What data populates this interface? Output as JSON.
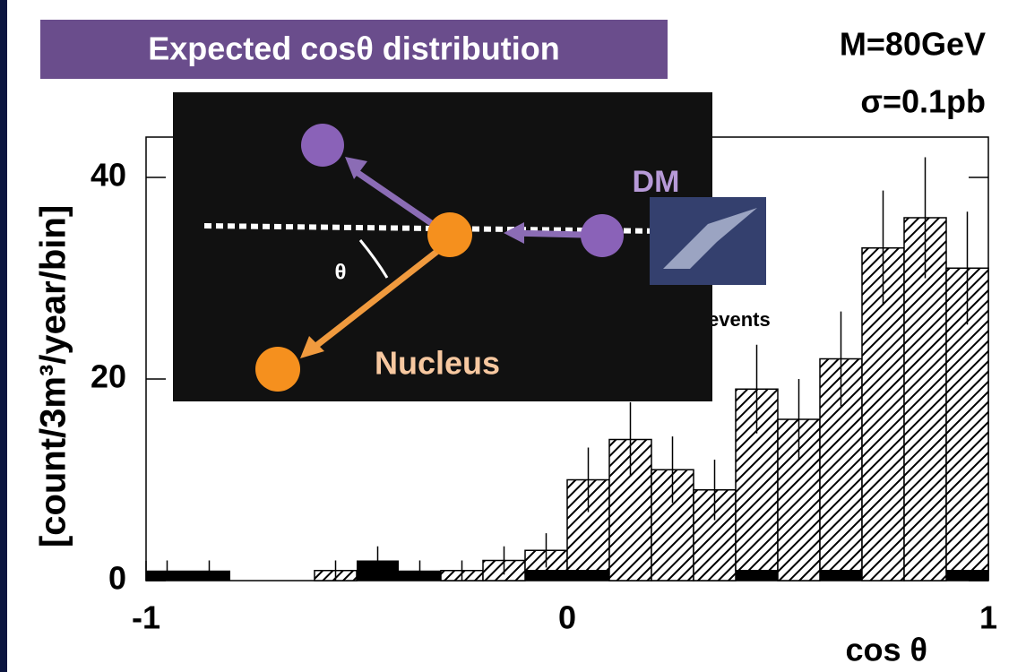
{
  "chart_data": {
    "type": "histogram",
    "title": "Expected cosθ distribution",
    "annotations": [
      "M=80GeV",
      "σ=0.1pb",
      "events"
    ],
    "inset_labels": [
      "DM",
      "θ",
      "Nucleus"
    ],
    "ylabel": "[count/3m³/year/bin]",
    "xlabel": "cos θ",
    "bins": [
      -1,
      -0.9,
      -0.8,
      -0.7,
      -0.6,
      -0.5,
      -0.4,
      -0.3,
      -0.2,
      -0.1,
      0,
      0.1,
      0.2,
      0.3,
      0.4,
      0.5,
      0.6,
      0.7,
      0.8,
      0.9,
      1
    ],
    "series": [
      {
        "color": "#000000",
        "pattern": "solid",
        "values": [
          1,
          1,
          0,
          0,
          0,
          2,
          1,
          0,
          0,
          1,
          1,
          0,
          0,
          0,
          1,
          0,
          1,
          0,
          0,
          1
        ]
      },
      {
        "color": "#000000",
        "pattern": "hatch",
        "values": [
          0,
          0,
          0,
          0,
          1,
          0,
          0,
          1,
          2,
          2,
          9,
          14,
          11,
          9,
          18,
          16,
          21,
          33,
          36,
          30
        ]
      }
    ],
    "errors": [
      1,
      1,
      0,
      0,
      1,
      1.4,
      1,
      1,
      1.4,
      1.7,
      3.2,
      3.7,
      3.3,
      3,
      4.4,
      4,
      4.7,
      5.7,
      6,
      5.6
    ],
    "xlim": [
      -1,
      1
    ],
    "xticks": [
      -1,
      0,
      1
    ],
    "ylim": [
      0,
      44
    ],
    "yticks": [
      0,
      20,
      40
    ]
  }
}
